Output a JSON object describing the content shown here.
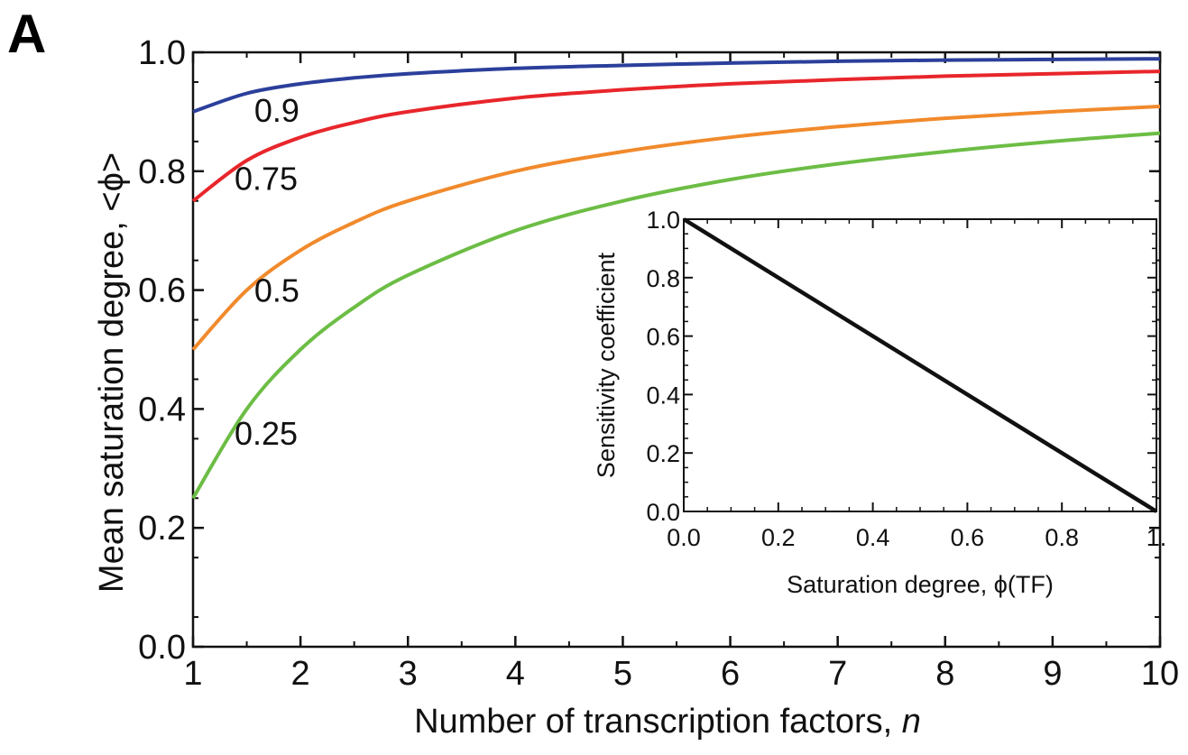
{
  "panel_letter": "A",
  "colors": {
    "axis": "#111111",
    "inset_line": "#111111"
  },
  "chart_data": [
    {
      "type": "line",
      "title": "",
      "xlabel": "Number of transcription factors, ",
      "xlabel_italic": "n",
      "ylabel": "Mean saturation degree, <ϕ>",
      "xlim": [
        1,
        10
      ],
      "ylim": [
        0,
        1
      ],
      "x_ticks": [
        1,
        2,
        3,
        4,
        5,
        6,
        7,
        8,
        9,
        10
      ],
      "x_tick_labels": [
        "1",
        "2",
        "3",
        "4",
        "5",
        "6",
        "7",
        "8",
        "9",
        "10"
      ],
      "y_ticks": [
        0,
        0.2,
        0.4,
        0.6,
        0.8,
        1.0
      ],
      "y_tick_labels": [
        "0.0",
        "0.2",
        "0.4",
        "0.6",
        "0.8",
        "1.0"
      ],
      "grid": false,
      "x": [
        1,
        1.5,
        2,
        2.5,
        3,
        4,
        5,
        6,
        7,
        8,
        9,
        10
      ],
      "series": [
        {
          "name": "0.9",
          "color": "#2b3f9b",
          "label_x": 1.78,
          "label_y": 0.903,
          "values": [
            0.9,
            0.931,
            0.947,
            0.957,
            0.964,
            0.973,
            0.978,
            0.982,
            0.985,
            0.987,
            0.988,
            0.989
          ]
        },
        {
          "name": "0.75",
          "color": "#e8262b",
          "label_x": 1.68,
          "label_y": 0.788,
          "values": [
            0.75,
            0.818,
            0.857,
            0.882,
            0.9,
            0.923,
            0.937,
            0.947,
            0.954,
            0.96,
            0.964,
            0.968
          ]
        },
        {
          "name": "0.5",
          "color": "#f18a2c",
          "label_x": 1.78,
          "label_y": 0.6,
          "values": [
            0.5,
            0.6,
            0.667,
            0.714,
            0.75,
            0.8,
            0.833,
            0.857,
            0.875,
            0.889,
            0.9,
            0.909
          ]
        },
        {
          "name": "0.25",
          "color": "#6cbd45",
          "label_x": 1.68,
          "label_y": 0.36,
          "values": [
            0.25,
            0.4,
            0.5,
            0.571,
            0.625,
            0.7,
            0.75,
            0.786,
            0.8125,
            0.833,
            0.85,
            0.864
          ]
        }
      ]
    },
    {
      "type": "line",
      "title": "",
      "xlabel": "Saturation degree, ϕ(TF)",
      "ylabel": "Sensitivity coefficient",
      "xlim": [
        0,
        1
      ],
      "ylim": [
        0,
        1
      ],
      "x_ticks": [
        0,
        0.2,
        0.4,
        0.6,
        0.8,
        1.0
      ],
      "x_tick_labels": [
        "0.0",
        "0.2",
        "0.4",
        "0.6",
        "0.8",
        "1."
      ],
      "y_ticks": [
        0,
        0.2,
        0.4,
        0.6,
        0.8,
        1.0
      ],
      "y_tick_labels": [
        "0.0",
        "0.2",
        "0.4",
        "0.6",
        "0.8",
        "1.0"
      ],
      "grid": false,
      "x": [
        0,
        1
      ],
      "series": [
        {
          "color": "#111111",
          "values": [
            1,
            0
          ]
        }
      ]
    }
  ]
}
